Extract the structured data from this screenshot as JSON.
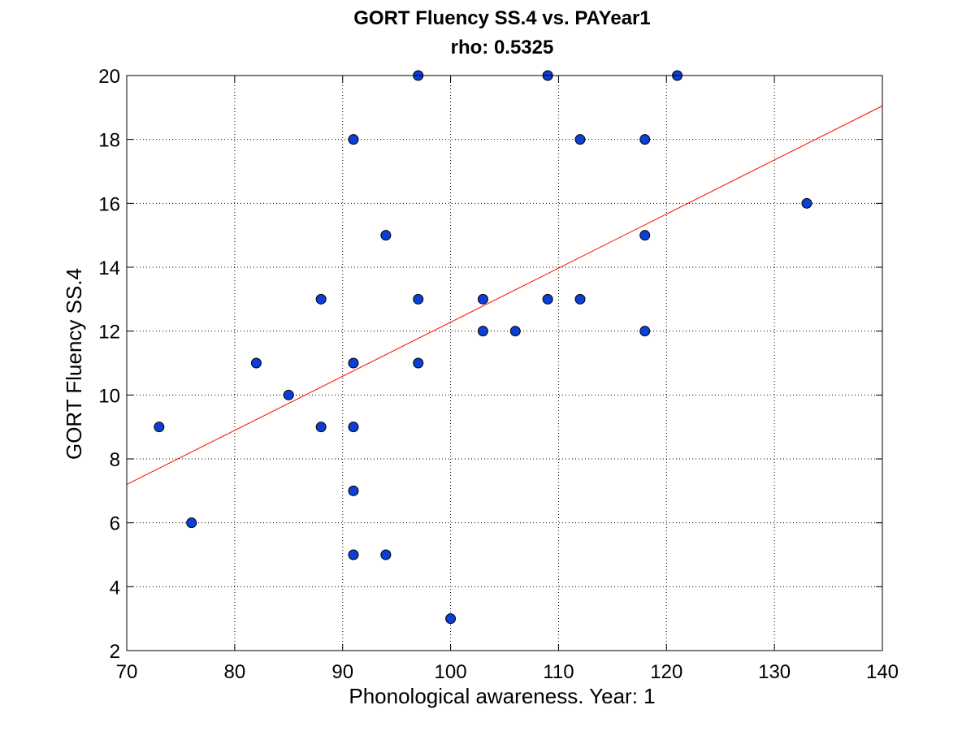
{
  "chart_data": {
    "type": "scatter",
    "title": "GORT Fluency SS.4 vs. PAYear1",
    "subtitle": "rho: 0.5325",
    "xlabel": "Phonological awareness. Year: 1",
    "ylabel": "GORT Fluency SS.4",
    "xlim": [
      70,
      140
    ],
    "ylim": [
      2,
      20
    ],
    "xticks": [
      70,
      80,
      90,
      100,
      110,
      120,
      130,
      140
    ],
    "yticks": [
      2,
      4,
      6,
      8,
      10,
      12,
      14,
      16,
      18,
      20
    ],
    "grid": true,
    "legend": "none",
    "colors": {
      "marker_fill": "#0b3fd6",
      "marker_edge": "#000000",
      "fit_line": "#ff0000",
      "grid": "#000000"
    },
    "points": [
      {
        "x": 73,
        "y": 9
      },
      {
        "x": 76,
        "y": 6
      },
      {
        "x": 82,
        "y": 11
      },
      {
        "x": 85,
        "y": 10
      },
      {
        "x": 88,
        "y": 13
      },
      {
        "x": 88,
        "y": 9
      },
      {
        "x": 91,
        "y": 18
      },
      {
        "x": 91,
        "y": 11
      },
      {
        "x": 91,
        "y": 9
      },
      {
        "x": 91,
        "y": 7
      },
      {
        "x": 91,
        "y": 5
      },
      {
        "x": 94,
        "y": 15
      },
      {
        "x": 94,
        "y": 5
      },
      {
        "x": 97,
        "y": 20
      },
      {
        "x": 97,
        "y": 13
      },
      {
        "x": 97,
        "y": 11
      },
      {
        "x": 100,
        "y": 3
      },
      {
        "x": 103,
        "y": 13
      },
      {
        "x": 103,
        "y": 12
      },
      {
        "x": 106,
        "y": 12
      },
      {
        "x": 109,
        "y": 20
      },
      {
        "x": 109,
        "y": 13
      },
      {
        "x": 112,
        "y": 18
      },
      {
        "x": 112,
        "y": 13
      },
      {
        "x": 118,
        "y": 18
      },
      {
        "x": 118,
        "y": 15
      },
      {
        "x": 118,
        "y": 12
      },
      {
        "x": 121,
        "y": 20
      },
      {
        "x": 133,
        "y": 16
      }
    ],
    "fit_line": {
      "x": [
        70,
        140
      ],
      "y": [
        7.2,
        19.05
      ]
    }
  }
}
